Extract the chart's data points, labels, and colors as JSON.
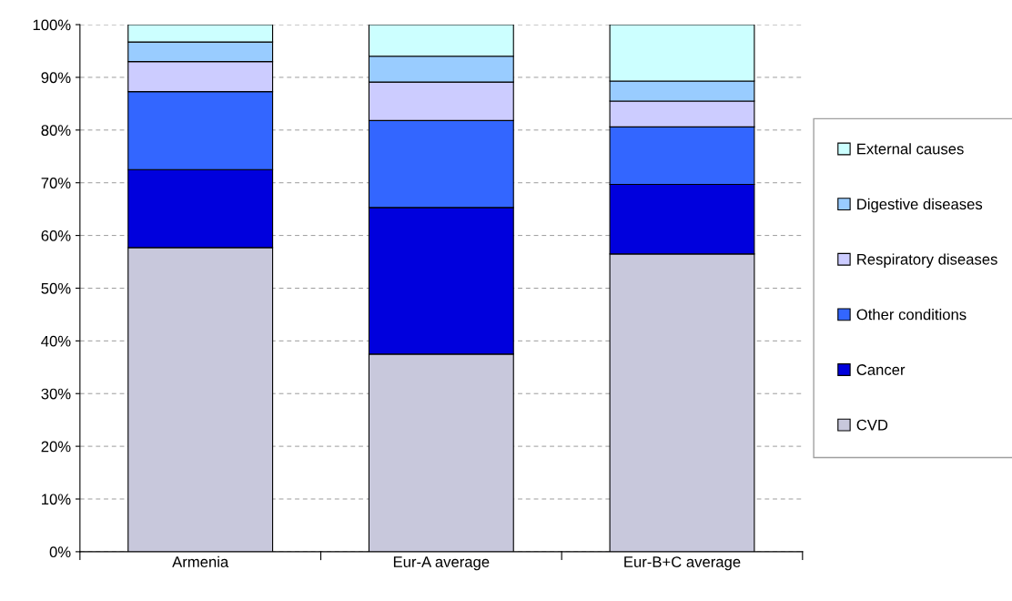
{
  "chart_data": {
    "type": "bar",
    "stacked": true,
    "categories": [
      "Armenia",
      "Eur-A average",
      "Eur-B+C average"
    ],
    "series": [
      {
        "name": "CVD",
        "color": "#c8c8dc",
        "values": [
          57.7,
          37.5,
          56.5
        ]
      },
      {
        "name": "Cancer",
        "color": "#0000dd",
        "values": [
          14.8,
          27.8,
          13.2
        ]
      },
      {
        "name": "Other conditions",
        "color": "#3366ff",
        "values": [
          14.8,
          16.5,
          10.9
        ]
      },
      {
        "name": "Respiratory diseases",
        "color": "#ccccff",
        "values": [
          5.7,
          7.3,
          4.9
        ]
      },
      {
        "name": "Digestive diseases",
        "color": "#99ccff",
        "values": [
          3.7,
          4.9,
          3.8
        ]
      },
      {
        "name": "External causes",
        "color": "#ccffff",
        "values": [
          3.3,
          6.0,
          10.7
        ]
      }
    ],
    "ylim": [
      0,
      100
    ],
    "yticks": [
      {
        "value": 0,
        "label": "0%"
      },
      {
        "value": 10,
        "label": "10%"
      },
      {
        "value": 20,
        "label": "20%"
      },
      {
        "value": 30,
        "label": "30%"
      },
      {
        "value": 40,
        "label": "40%"
      },
      {
        "value": 50,
        "label": "50%"
      },
      {
        "value": 60,
        "label": "60%"
      },
      {
        "value": 70,
        "label": "70%"
      },
      {
        "value": 80,
        "label": "80%"
      },
      {
        "value": 90,
        "label": "90%"
      },
      {
        "value": 100,
        "label": "100%"
      }
    ],
    "grid": "y",
    "legend": "right"
  }
}
